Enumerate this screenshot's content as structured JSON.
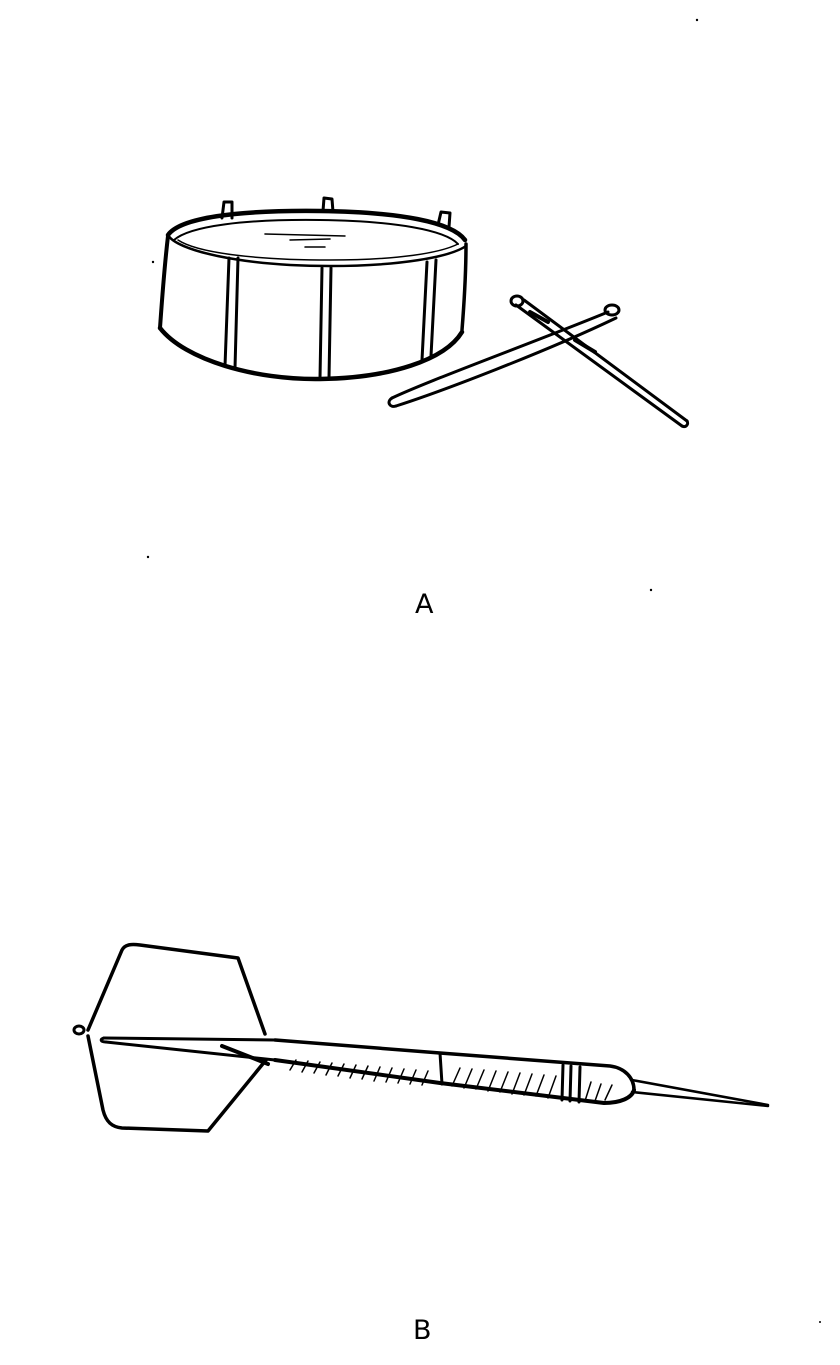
{
  "figures": [
    {
      "id": "A",
      "label": "A",
      "depicts": "drum-icon"
    },
    {
      "id": "B",
      "label": "B",
      "depicts": "dart-icon"
    }
  ],
  "colors": {
    "ink": "#000000",
    "paper": "#ffffff"
  }
}
